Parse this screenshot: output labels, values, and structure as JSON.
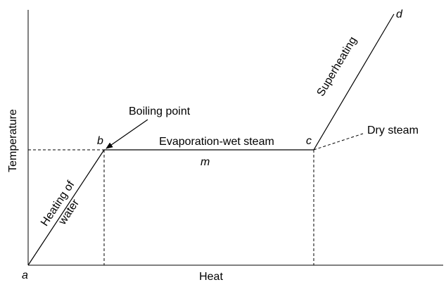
{
  "axes": {
    "y_label": "Temperature",
    "x_label": "Heat"
  },
  "points": {
    "a": "a",
    "b": "b",
    "c": "c",
    "d": "d",
    "m": "m"
  },
  "annotations": {
    "boiling_point": "Boiling point",
    "evaporation": "Evaporation-wet steam",
    "dry_steam": "Dry steam",
    "superheating": "Superheating",
    "heating_line1": "Heating of",
    "heating_line2": "water"
  }
}
